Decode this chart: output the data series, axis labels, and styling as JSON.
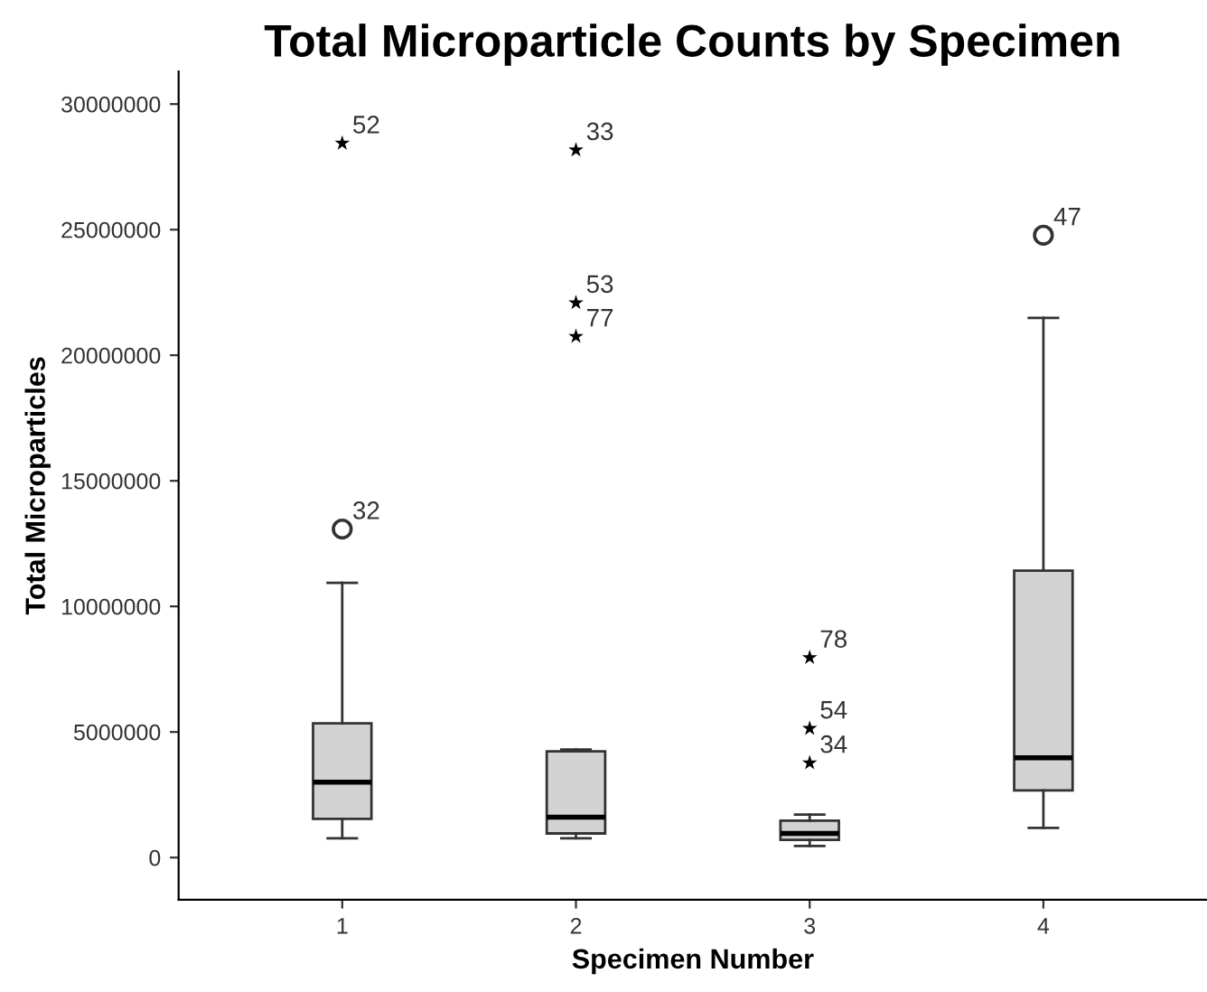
{
  "chart_data": {
    "type": "box",
    "title": "Total Microparticle Counts by Specimen",
    "xlabel": "Specimen Number",
    "ylabel": "Total Microparticles",
    "categories": [
      "1",
      "2",
      "3",
      "4"
    ],
    "color": "#d3d3d3",
    "boxes": [
      {
        "low": 770000,
        "q1": 1540000,
        "median": 3000000,
        "q3": 5340000,
        "high": 10940000
      },
      {
        "low": 770000,
        "q1": 960000,
        "median": 1610000,
        "q3": 4230000,
        "high": 4300000
      },
      {
        "low": 460000,
        "q1": 700000,
        "median": 960000,
        "q3": 1470000,
        "high": 1710000
      },
      {
        "low": 1180000,
        "q1": 2670000,
        "median": 3970000,
        "q3": 11420000,
        "high": 21490000
      }
    ],
    "series": [
      {
        "type": "scatter",
        "marker": "star",
        "color": "#000000",
        "x": [
          "1",
          "2",
          "2",
          "2",
          "3",
          "3",
          "3"
        ],
        "values": [
          28440000,
          28170000,
          22090000,
          20750000,
          7960000,
          5140000,
          3770000
        ]
      },
      {
        "type": "scatter",
        "marker": "circle",
        "color": "#333333",
        "x": [
          "1",
          "4"
        ],
        "values": [
          13080000,
          24780000
        ]
      }
    ],
    "annotations": [
      {
        "text": "52",
        "x": "1",
        "y": 28440000
      },
      {
        "text": "32",
        "x": "1",
        "y": 13080000
      },
      {
        "text": "33",
        "x": "2",
        "y": 28170000
      },
      {
        "text": "53",
        "x": "2",
        "y": 22090000
      },
      {
        "text": "77",
        "x": "2",
        "y": 20750000
      },
      {
        "text": "78",
        "x": "3",
        "y": 7960000
      },
      {
        "text": "54",
        "x": "3",
        "y": 5140000
      },
      {
        "text": "34",
        "x": "3",
        "y": 3770000
      },
      {
        "text": "47",
        "x": "4",
        "y": 24780000
      }
    ],
    "ylim": [
      -1680000,
      31300000
    ],
    "yticks": [
      0,
      5000000,
      10000000,
      15000000,
      20000000,
      25000000,
      30000000
    ],
    "grid": false,
    "legend": false
  }
}
